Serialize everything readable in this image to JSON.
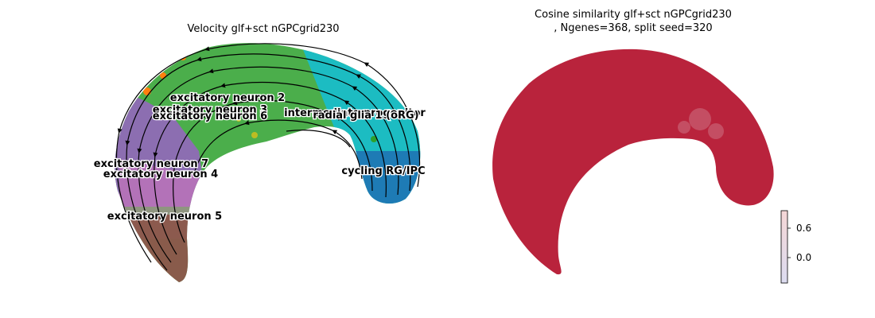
{
  "chart_data": [
    {
      "type": "scatter",
      "title": "Velocity glf+sct nGPCgrid230",
      "overlay": "velocity streamlines",
      "axes_visible": false,
      "clusters": [
        {
          "name": "excitatory neuron 2",
          "color": "#2ca02c"
        },
        {
          "name": "excitatory neuron 3",
          "color": "#2ca02c"
        },
        {
          "name": "excitatory neuron 6",
          "color": "#2ca02c"
        },
        {
          "name": "intermediate progenitor",
          "color": "#17becf"
        },
        {
          "name": "radial glia 1 (oRG)",
          "color": "#17becf"
        },
        {
          "name": "excitatory neuron 7",
          "color": "#9467bd"
        },
        {
          "name": "excitatory neuron 4",
          "color": "#e377c2"
        },
        {
          "name": "cycling RG/IPC",
          "color": "#1f77b4"
        },
        {
          "name": "excitatory neuron 5",
          "color": "#8c564b"
        }
      ]
    },
    {
      "type": "scatter",
      "title_line1": "Cosine similarity glf+sct nGPCgrid230",
      "title_line2": ", Ngenes=368, split seed=320",
      "point_color": "#b3102b",
      "axes_visible": false,
      "colorbar": {
        "ticks": [
          "0.6",
          "0.0"
        ],
        "colormap": [
          "#f5d6d6",
          "#dcdcf0"
        ]
      }
    }
  ]
}
